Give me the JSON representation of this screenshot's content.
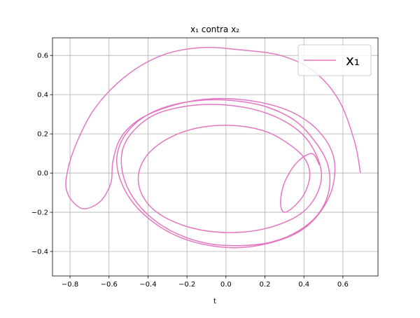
{
  "chart_data": {
    "type": "line",
    "title": "x₁ contra x₂",
    "xlabel": "t",
    "ylabel": "",
    "xlim": [
      -0.89,
      0.78
    ],
    "ylim": [
      -0.525,
      0.69
    ],
    "xticks": [
      -0.8,
      -0.6,
      -0.4,
      -0.2,
      0.0,
      0.2,
      0.4,
      0.6
    ],
    "xtick_labels": [
      "−0.8",
      "−0.6",
      "−0.4",
      "−0.2",
      "0.0",
      "0.2",
      "0.4",
      "0.6"
    ],
    "yticks": [
      -0.4,
      -0.2,
      0.0,
      0.2,
      0.4,
      0.6
    ],
    "ytick_labels": [
      "−0.4",
      "−0.2",
      "0.0",
      "0.2",
      "0.4",
      "0.6"
    ],
    "grid": true,
    "legend_position": "top-right",
    "series": [
      {
        "name": "x₁",
        "color": "#e377c2",
        "x": [
          0.69,
          0.66,
          0.58,
          0.45,
          0.28,
          0.06,
          -0.13,
          -0.33,
          -0.52,
          -0.68,
          -0.78,
          -0.82,
          -0.81,
          -0.76,
          -0.71,
          -0.64,
          -0.59,
          -0.58,
          -0.54,
          -0.45,
          -0.32,
          -0.16,
          0.0,
          0.18,
          0.34,
          0.47,
          0.55,
          0.55,
          0.49,
          0.39,
          0.25,
          0.08,
          -0.08,
          -0.23,
          -0.36,
          -0.47,
          -0.54,
          -0.56,
          -0.52,
          -0.43,
          -0.3,
          -0.14,
          0.03,
          0.2,
          0.35,
          0.45,
          0.52,
          0.53,
          0.48,
          0.38,
          0.24,
          0.08,
          -0.09,
          -0.25,
          -0.38,
          -0.48,
          -0.53,
          -0.53,
          -0.47,
          -0.36,
          -0.21,
          -0.05,
          0.12,
          0.27,
          0.39,
          0.46,
          0.49,
          0.46,
          0.38,
          0.25,
          0.1,
          -0.06,
          -0.21,
          -0.34,
          -0.42,
          -0.45,
          -0.42,
          -0.34,
          -0.22,
          -0.08,
          0.07,
          0.21,
          0.32,
          0.4,
          0.43,
          0.41,
          0.36,
          0.3,
          0.28,
          0.3,
          0.36,
          0.44,
          0.48
        ],
        "y": [
          0.0,
          0.16,
          0.37,
          0.52,
          0.6,
          0.63,
          0.64,
          0.6,
          0.49,
          0.32,
          0.12,
          -0.03,
          -0.11,
          -0.17,
          -0.18,
          -0.14,
          -0.05,
          0.06,
          0.18,
          0.27,
          0.33,
          0.37,
          0.38,
          0.36,
          0.31,
          0.22,
          0.09,
          -0.06,
          -0.19,
          -0.29,
          -0.35,
          -0.38,
          -0.37,
          -0.33,
          -0.26,
          -0.16,
          -0.04,
          0.08,
          0.19,
          0.28,
          0.34,
          0.37,
          0.37,
          0.34,
          0.27,
          0.17,
          0.05,
          -0.08,
          -0.2,
          -0.29,
          -0.35,
          -0.37,
          -0.36,
          -0.31,
          -0.23,
          -0.12,
          0.0,
          0.12,
          0.22,
          0.3,
          0.34,
          0.35,
          0.33,
          0.28,
          0.2,
          0.1,
          -0.01,
          -0.12,
          -0.21,
          -0.27,
          -0.3,
          -0.3,
          -0.27,
          -0.21,
          -0.13,
          -0.03,
          0.07,
          0.15,
          0.21,
          0.24,
          0.24,
          0.21,
          0.15,
          0.08,
          0.0,
          -0.09,
          -0.16,
          -0.2,
          -0.15,
          -0.05,
          0.05,
          0.1,
          0.04
        ]
      }
    ]
  }
}
